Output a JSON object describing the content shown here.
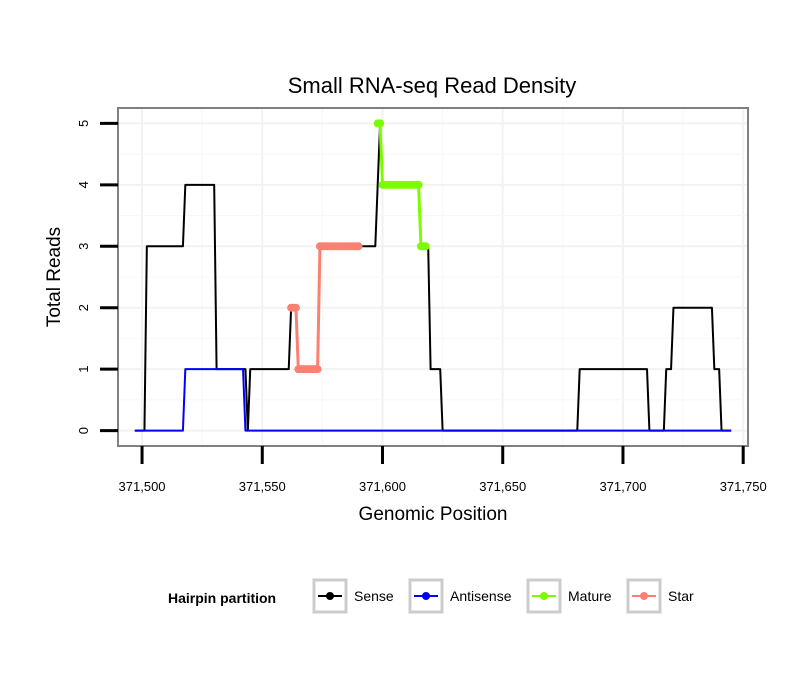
{
  "chart_data": {
    "type": "line",
    "title": "Small RNA-seq Read Density",
    "xlabel": "Genomic Position",
    "ylabel": "Total Reads",
    "xlim": [
      371490,
      371752
    ],
    "ylim": [
      -0.25,
      5.25
    ],
    "x_ticks": [
      371500,
      371550,
      371600,
      371650,
      371700,
      371750
    ],
    "x_tick_labels": [
      "371,500",
      "371,550",
      "371,600",
      "371,650",
      "371,700",
      "371,750"
    ],
    "y_ticks": [
      0,
      1,
      2,
      3,
      4,
      5
    ],
    "y_tick_labels": [
      "0",
      "1",
      "2",
      "3",
      "4",
      "5"
    ],
    "grid": true,
    "legend": {
      "title": "Hairpin partition",
      "position": "bottom",
      "entries": [
        {
          "label": "Sense",
          "color": "#000000"
        },
        {
          "label": "Antisense",
          "color": "#0000ff"
        },
        {
          "label": "Mature",
          "color": "#7cfc00"
        },
        {
          "label": "Star",
          "color": "#fa8072"
        }
      ]
    },
    "series": [
      {
        "name": "Sense",
        "color": "#000000",
        "marker": false,
        "x": [
          371497,
          371501,
          371502,
          371517,
          371518,
          371530,
          371531,
          371542,
          371543,
          371544,
          371545,
          371561,
          371562,
          371564,
          371565,
          371573,
          371574,
          371596,
          371597,
          371599,
          371600,
          371615,
          371616,
          371619,
          371620,
          371624,
          371625,
          371681,
          371682,
          371710,
          371711,
          371717,
          371718,
          371720,
          371721,
          371737,
          371738,
          371740,
          371741,
          371745
        ],
        "y": [
          0,
          0,
          3,
          3,
          4,
          4,
          1,
          1,
          1,
          0,
          1,
          1,
          2,
          2,
          1,
          1,
          3,
          3,
          3,
          5,
          4,
          4,
          3,
          3,
          1,
          1,
          0,
          0,
          1,
          1,
          0,
          0,
          1,
          1,
          2,
          2,
          1,
          1,
          0,
          0
        ]
      },
      {
        "name": "Antisense",
        "color": "#0000ff",
        "marker": false,
        "x": [
          371497,
          371517,
          371518,
          371542,
          371543,
          371745
        ],
        "y": [
          0,
          0,
          1,
          1,
          0,
          0
        ]
      },
      {
        "name": "Mature",
        "color": "#7cfc00",
        "marker": true,
        "x": [
          371598,
          371599,
          371600,
          371601,
          371602,
          371603,
          371604,
          371605,
          371606,
          371607,
          371608,
          371609,
          371610,
          371611,
          371612,
          371613,
          371614,
          371615,
          371616,
          371617,
          371618
        ],
        "y": [
          5,
          5,
          4,
          4,
          4,
          4,
          4,
          4,
          4,
          4,
          4,
          4,
          4,
          4,
          4,
          4,
          4,
          4,
          3,
          3,
          3
        ]
      },
      {
        "name": "Star",
        "color": "#fa8072",
        "marker": true,
        "x": [
          371562,
          371563,
          371564,
          371565,
          371566,
          371567,
          371568,
          371569,
          371570,
          371571,
          371572,
          371573,
          371574,
          371575,
          371576,
          371577,
          371578,
          371579,
          371580,
          371581,
          371582,
          371583,
          371584,
          371585,
          371586,
          371587,
          371588,
          371589,
          371590
        ],
        "y": [
          2,
          2,
          2,
          1,
          1,
          1,
          1,
          1,
          1,
          1,
          1,
          1,
          3,
          3,
          3,
          3,
          3,
          3,
          3,
          3,
          3,
          3,
          3,
          3,
          3,
          3,
          3,
          3,
          3
        ]
      }
    ]
  }
}
